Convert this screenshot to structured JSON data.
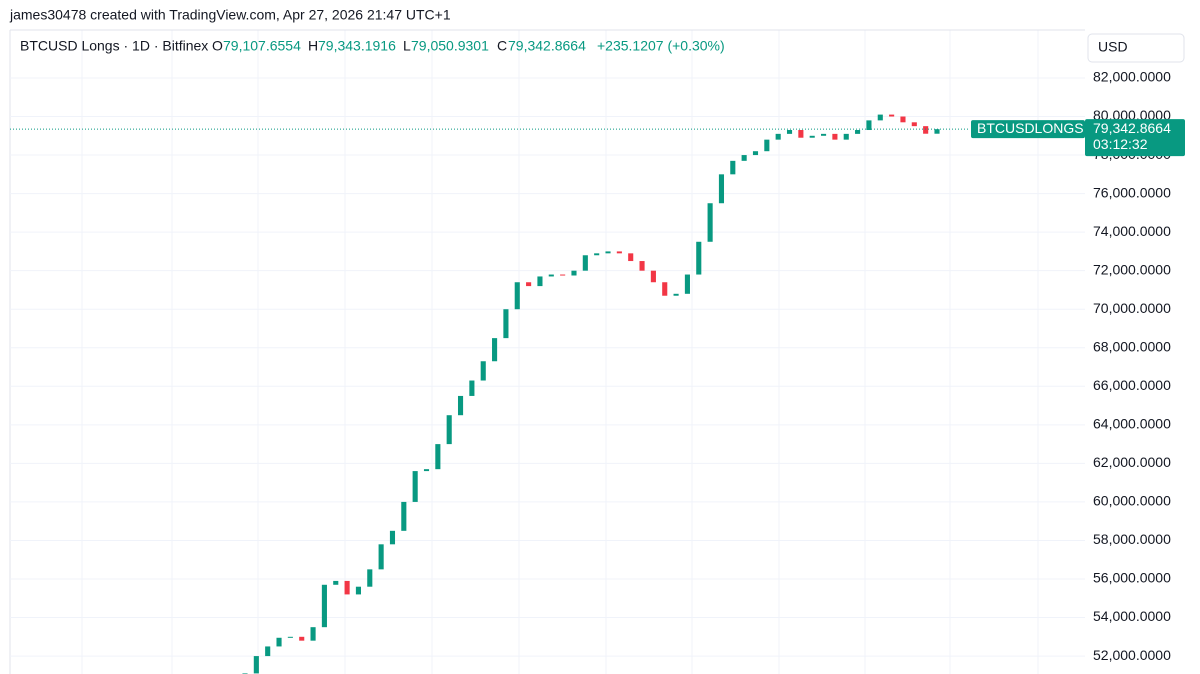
{
  "chart_data": {
    "type": "candlestick",
    "watermark": "james30478 created with TradingView.com, Apr 27, 2026 21:47 UTC+1",
    "title": "BTCUSD Longs · 1D · Bitfinex",
    "legend": {
      "o": "O",
      "open": "79,107.6554",
      "h": "H",
      "high": "79,343.1916",
      "l": "L",
      "low": "79,050.9301",
      "c": "C",
      "close": "79,342.8664",
      "change": "+235.1207 (+0.30%)"
    },
    "currency": "USD",
    "price_tag": {
      "symbol": "BTCUSDLONGS",
      "price": "79,342.8664",
      "countdown": "03:12:32"
    },
    "up_color": "#089981",
    "down_color": "#f23645",
    "open": [
      50800,
      51100,
      52000,
      52500,
      52950,
      53000,
      52800,
      53500,
      55700,
      55900,
      55200,
      55600,
      56500,
      57800,
      58500,
      60000,
      61600,
      61700,
      63000,
      64500,
      65500,
      66300,
      67300,
      68500,
      70000,
      71400,
      71200,
      71700,
      71800,
      71750,
      72000,
      72800,
      72900,
      73000,
      72900,
      72500,
      72000,
      71400,
      70700,
      70800,
      71800,
      73500,
      75500,
      77000,
      77700,
      78000,
      78200,
      78800,
      79100,
      79300,
      78900,
      79000,
      79100,
      78800,
      79100,
      79300,
      79800,
      80100,
      80000,
      79700,
      79500,
      79107.6554
    ],
    "close": [
      51100,
      52000,
      52500,
      52950,
      53000,
      52800,
      53500,
      55700,
      55900,
      55200,
      55600,
      56500,
      57800,
      58500,
      60000,
      61600,
      61700,
      63000,
      64500,
      65500,
      66300,
      67300,
      68500,
      70000,
      71400,
      71200,
      71700,
      71800,
      71750,
      72000,
      72800,
      72900,
      73000,
      72900,
      72500,
      72000,
      71400,
      70700,
      70800,
      71800,
      73500,
      75500,
      77000,
      77700,
      78000,
      78200,
      78800,
      79100,
      79300,
      78900,
      79000,
      79100,
      78800,
      79100,
      79300,
      79800,
      80100,
      80000,
      79700,
      79500,
      79107.6554,
      79342.8664
    ],
    "ylim": [
      51070,
      84490
    ],
    "yticks": [
      {
        "value": 52000,
        "label": "52,000.0000"
      },
      {
        "value": 54000,
        "label": "54,000.0000"
      },
      {
        "value": 56000,
        "label": "56,000.0000"
      },
      {
        "value": 58000,
        "label": "58,000.0000"
      },
      {
        "value": 60000,
        "label": "60,000.0000"
      },
      {
        "value": 62000,
        "label": "62,000.0000"
      },
      {
        "value": 64000,
        "label": "64,000.0000"
      },
      {
        "value": 66000,
        "label": "66,000.0000"
      },
      {
        "value": 68000,
        "label": "68,000.0000"
      },
      {
        "value": 70000,
        "label": "70,000.0000"
      },
      {
        "value": 72000,
        "label": "72,000.0000"
      },
      {
        "value": 74000,
        "label": "74,000.0000"
      },
      {
        "value": 76000,
        "label": "76,000.0000"
      },
      {
        "value": 78000,
        "label": "78,000.0000"
      },
      {
        "value": 80000,
        "label": "80,000.0000"
      },
      {
        "value": 82000,
        "label": "82,000.0000"
      }
    ],
    "grid": true
  }
}
